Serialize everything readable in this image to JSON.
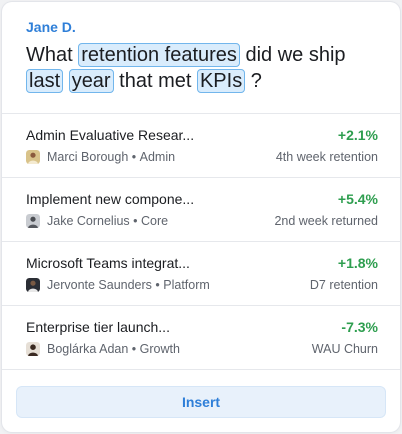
{
  "author": "Jane D.",
  "question": {
    "parts": [
      {
        "text": "What ",
        "highlight": false
      },
      {
        "text": "retention features",
        "highlight": true
      },
      {
        "text": " did we ship ",
        "highlight": false
      },
      {
        "text": "last",
        "highlight": true
      },
      {
        "text": " ",
        "highlight": false
      },
      {
        "text": "year",
        "highlight": true
      },
      {
        "text": " that met ",
        "highlight": false
      },
      {
        "text": "KPIs",
        "highlight": true
      },
      {
        "text": " ?",
        "highlight": false
      }
    ]
  },
  "results": [
    {
      "title": "Admin Evaluative Resear...",
      "owner": "Marci Borough",
      "team": "Admin",
      "delta": "+2.1%",
      "metric": "4th week retention",
      "avatar_icon": "person-avatar-icon"
    },
    {
      "title": "Implement new compone...",
      "owner": "Jake Cornelius",
      "team": "Core",
      "delta": "+5.4%",
      "metric": "2nd week returned",
      "avatar_icon": "person-avatar-icon"
    },
    {
      "title": "Microsoft Teams integrat...",
      "owner": "Jervonte Saunders",
      "team": "Platform",
      "delta": "+1.8%",
      "metric": "D7 retention",
      "avatar_icon": "person-avatar-icon"
    },
    {
      "title": "Enterprise tier launch...",
      "owner": "Boglárka Adan",
      "team": "Growth",
      "delta": "-7.3%",
      "metric": "WAU Churn",
      "avatar_icon": "person-avatar-icon"
    }
  ],
  "footer": {
    "insert_label": "Insert"
  },
  "colors": {
    "accent": "#2f7fd8",
    "delta": "#2e9e4f",
    "highlight_bg": "#d9ecfc",
    "highlight_border": "#72b6ec"
  }
}
